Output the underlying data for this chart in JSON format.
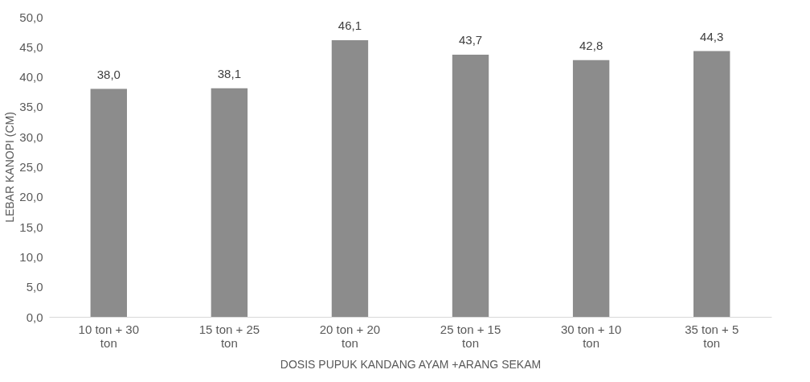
{
  "chart_data": {
    "type": "bar",
    "xlabel": "DOSIS PUPUK KANDANG AYAM +ARANG SEKAM",
    "ylabel": "LEBAR KANOPI (CM)",
    "categories": [
      "10 ton + 30 ton",
      "15 ton + 25 ton",
      "20  ton + 20 ton",
      "25 ton + 15 ton",
      "30 ton + 10 ton",
      "35 ton + 5 ton"
    ],
    "values": [
      38.0,
      38.1,
      46.1,
      43.7,
      42.8,
      44.3
    ],
    "value_labels": [
      "38,0",
      "38,1",
      "46,1",
      "43,7",
      "42,8",
      "44,3"
    ],
    "color": "#8c8c8c",
    "ylim": [
      0,
      50
    ],
    "yticks": [
      {
        "value": 0,
        "label": "0,0"
      },
      {
        "value": 5,
        "label": "5,0"
      },
      {
        "value": 10,
        "label": "10,0"
      },
      {
        "value": 15,
        "label": "15,0"
      },
      {
        "value": 20,
        "label": "20,0"
      },
      {
        "value": 25,
        "label": "25,0"
      },
      {
        "value": 30,
        "label": "30,0"
      },
      {
        "value": 35,
        "label": "35,0"
      },
      {
        "value": 40,
        "label": "40,0"
      },
      {
        "value": 45,
        "label": "45,0"
      },
      {
        "value": 50,
        "label": "50,0"
      }
    ],
    "grid": false
  }
}
